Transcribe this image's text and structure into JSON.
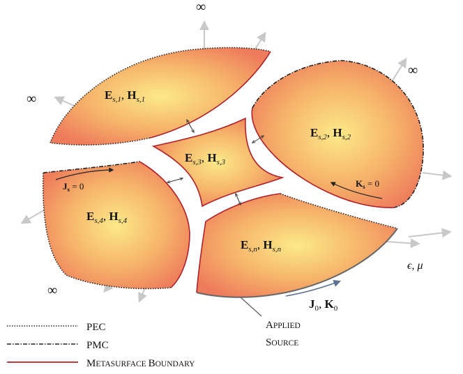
{
  "regions": [
    {
      "id": "s1",
      "label_E": "E",
      "sub_E": "s,1",
      "label_H": "H",
      "sub_H": "s,1"
    },
    {
      "id": "s2",
      "label_E": "E",
      "sub_E": "s,2",
      "label_H": "H",
      "sub_H": "s,2"
    },
    {
      "id": "s3",
      "label_E": "E",
      "sub_E": "s,3",
      "label_H": "H",
      "sub_H": "s,3"
    },
    {
      "id": "s4",
      "label_E": "E",
      "sub_E": "s,4",
      "label_H": "H",
      "sub_H": "s,4"
    },
    {
      "id": "sn",
      "label_E": "E",
      "sub_E": "s,n",
      "label_H": "H",
      "sub_H": "s,n"
    }
  ],
  "surface_currents": {
    "js": {
      "symbol": "J",
      "subscript": "s",
      "value": " = 0"
    },
    "ks": {
      "symbol": "K",
      "subscript": "s",
      "value": " = 0"
    }
  },
  "source": {
    "J": "J",
    "J_sub": "0",
    "K": "K",
    "K_sub": "0",
    "label_line1_first": "A",
    "label_line1_rest": "PPLIED",
    "label_line2_first": "S",
    "label_line2_rest": "OURCE"
  },
  "medium": {
    "eps": "ϵ",
    "mu": "μ"
  },
  "infinity_symbol": "∞",
  "legend": [
    {
      "key": "pec",
      "style": "dotted",
      "text": "PEC"
    },
    {
      "key": "pmc",
      "style": "dashdot",
      "text": "PMC"
    },
    {
      "key": "metasurface",
      "style": "solid-red",
      "first": "M",
      "rest": "ETASURFACE ",
      "first2": "B",
      "rest2": "OUNDARY"
    }
  ],
  "colors": {
    "fill_center": "#fce98a",
    "fill_edge": "#ee7c5c",
    "metasurface": "#b0202a",
    "arrow_grey": "#c8c8c8",
    "boundary_dark": "#222222"
  }
}
